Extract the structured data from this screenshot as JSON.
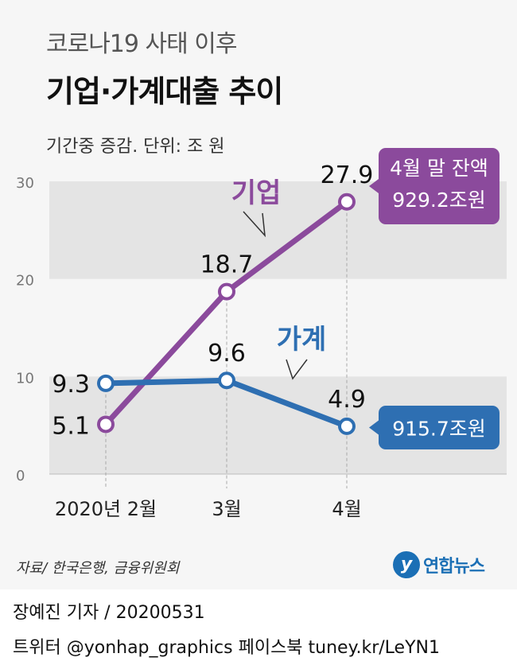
{
  "header": {
    "subtitle": "코로나19 사태 이후",
    "title": "기업·가계대출 추이",
    "unit_note": "기간중 증감. 단위: 조 원"
  },
  "chart_data": {
    "type": "line",
    "categories": [
      "2020년 2월",
      "3월",
      "4월"
    ],
    "series": [
      {
        "name": "기업",
        "values": [
          5.1,
          18.7,
          27.9
        ],
        "color": "#8b4a9c",
        "value_labels": [
          "5.1",
          "18.7",
          "27.9"
        ]
      },
      {
        "name": "가계",
        "values": [
          9.3,
          9.6,
          4.9
        ],
        "color": "#2e6fb2",
        "value_labels": [
          "9.3",
          "9.6",
          "4.9"
        ]
      }
    ],
    "ylim": [
      0,
      30
    ],
    "yticks": [
      "0",
      "10",
      "20",
      "30"
    ],
    "grid": false,
    "banded_background": true,
    "callouts": [
      {
        "series": "기업",
        "lines": [
          "4월 말 잔액",
          "929.2조원"
        ]
      },
      {
        "series": "가계",
        "lines": [
          "915.7조원"
        ]
      }
    ]
  },
  "source": "자료/ 한국은행, 금융위원회",
  "logo": {
    "text": "연합뉴스",
    "icon": "yonhap-logo-icon"
  },
  "footer": {
    "line1": "장예진 기자 / 20200531",
    "line2": "트위터 @yonhap_graphics  페이스북 tuney.kr/LeYN1"
  }
}
